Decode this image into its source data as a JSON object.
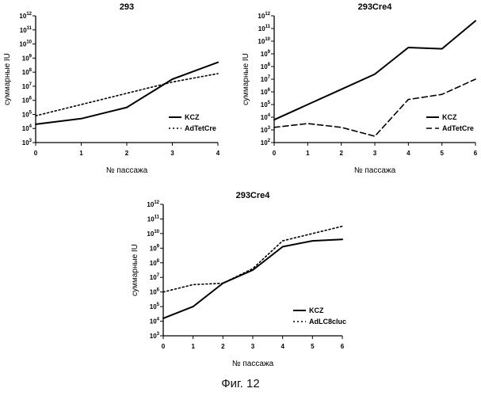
{
  "chart_data": [
    {
      "type": "line",
      "title": "293",
      "xlabel": "№ пассажа",
      "ylabel": "суммарные IU",
      "x": [
        0,
        1,
        2,
        3,
        4
      ],
      "xlim": [
        0,
        4
      ],
      "ylim_log10": [
        3,
        12
      ],
      "ytick_exponents": [
        3,
        4,
        5,
        6,
        7,
        8,
        9,
        10,
        11,
        12
      ],
      "y_scale": "log10",
      "legend_position": "lower-right",
      "series": [
        {
          "name": "KCZ",
          "style": "solid",
          "log10_values": [
            4.3,
            4.7,
            5.5,
            7.5,
            8.7
          ]
        },
        {
          "name": "AdTetCre",
          "style": "dotted",
          "log10_values": [
            4.9,
            5.7,
            6.5,
            7.3,
            7.9
          ]
        }
      ]
    },
    {
      "type": "line",
      "title": "293Cre4",
      "xlabel": "№ пассажа",
      "ylabel": "суммарные IU",
      "x": [
        0,
        1,
        2,
        3,
        4,
        5,
        6
      ],
      "xlim": [
        0,
        6
      ],
      "ylim_log10": [
        2,
        12
      ],
      "ytick_exponents": [
        2,
        3,
        4,
        5,
        6,
        7,
        8,
        9,
        10,
        11,
        12
      ],
      "y_scale": "log10",
      "legend_position": "lower-right",
      "series": [
        {
          "name": "KCZ",
          "style": "solid",
          "log10_values": [
            3.8,
            5.0,
            6.2,
            7.4,
            9.5,
            9.4,
            11.6
          ]
        },
        {
          "name": "AdTetCre",
          "style": "dashed",
          "log10_values": [
            3.2,
            3.5,
            3.2,
            2.5,
            5.4,
            5.8,
            7.0
          ]
        }
      ]
    },
    {
      "type": "line",
      "title": "293Cre4",
      "xlabel": "№ пассажа",
      "ylabel": "суммарные IU",
      "x": [
        0,
        1,
        2,
        3,
        4,
        5,
        6
      ],
      "xlim": [
        0,
        6
      ],
      "ylim_log10": [
        3,
        12
      ],
      "ytick_exponents": [
        3,
        4,
        5,
        6,
        7,
        8,
        9,
        10,
        11,
        12
      ],
      "y_scale": "log10",
      "legend_position": "lower-right",
      "series": [
        {
          "name": "KCZ",
          "style": "solid",
          "log10_values": [
            4.2,
            5.0,
            6.6,
            7.5,
            9.1,
            9.5,
            9.6
          ]
        },
        {
          "name": "AdLC8cluc",
          "style": "dotted",
          "log10_values": [
            6.0,
            6.5,
            6.6,
            7.6,
            9.5,
            10.0,
            10.5
          ]
        }
      ]
    }
  ],
  "caption": "Фиг. 12"
}
